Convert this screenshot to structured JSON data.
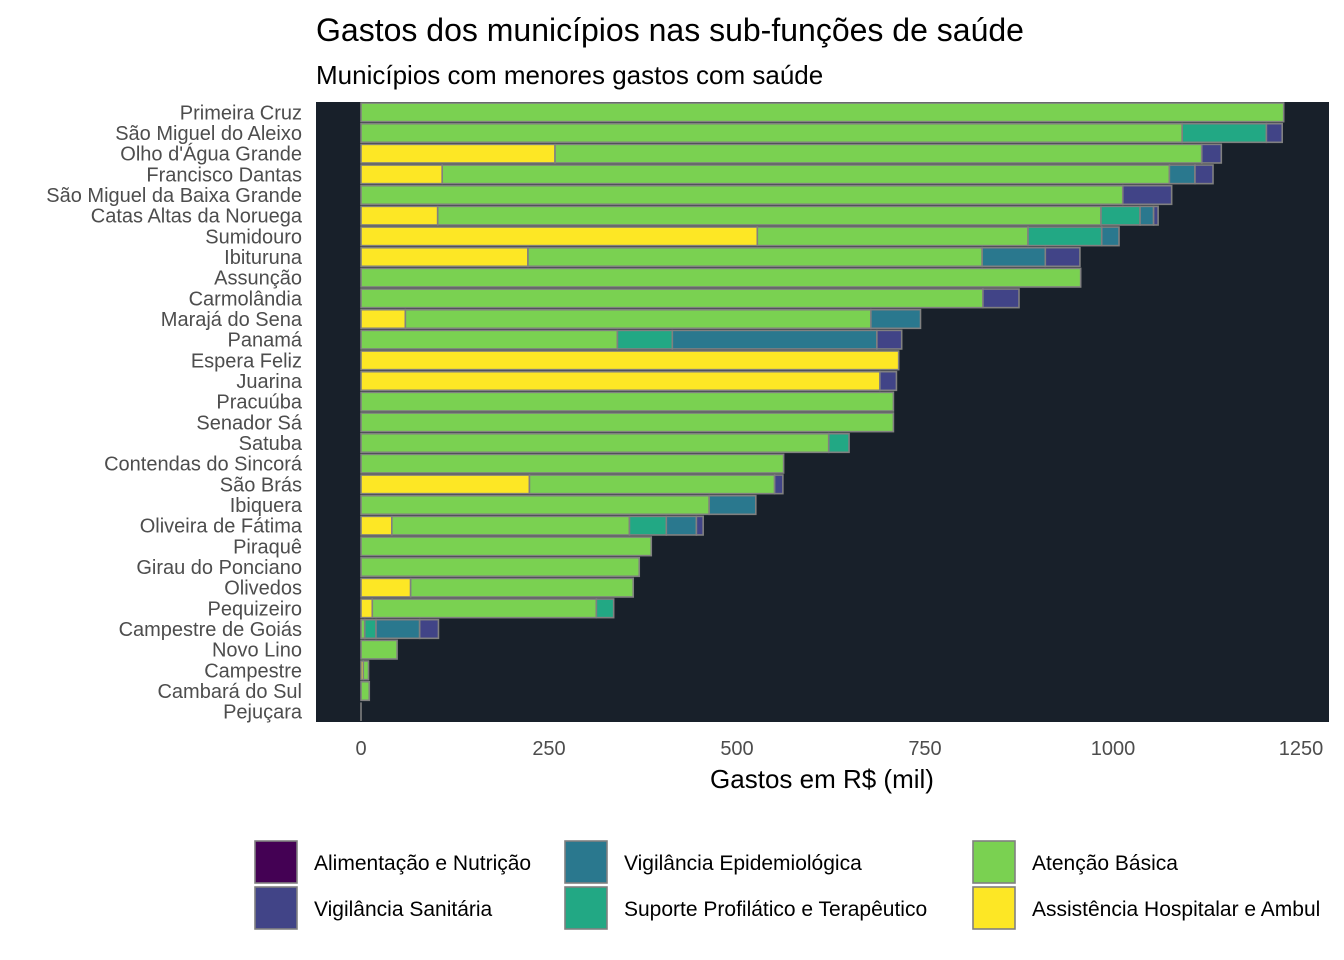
{
  "chart_data": {
    "type": "bar",
    "orientation": "horizontal",
    "stacked": true,
    "title": "Gastos dos municípios nas sub-funções de saúde",
    "subtitle": "Municípios com menores gastos com saúde",
    "xlabel": "Gastos em R$ (mil)",
    "ylabel": "",
    "xlim": [
      -60,
      1290
    ],
    "xticks": [
      0,
      250,
      500,
      750,
      1000,
      1250
    ],
    "panel_background": "#18202a",
    "bar_outline": "#808080",
    "legend_position": "bottom",
    "categories": [
      "Primeira Cruz",
      "São Miguel do Aleixo",
      "Olho d'Água Grande",
      "Francisco Dantas",
      "São Miguel da Baixa Grande",
      "Catas Altas da Noruega",
      "Sumidouro",
      "Ibituruna",
      "Assunção",
      "Carmolândia",
      "Marajá do Sena",
      "Panamá",
      "Espera Feliz",
      "Juarina",
      "Pracuúba",
      "Senador Sá",
      "Satuba",
      "Contendas do Sincorá",
      "São Brás",
      "Ibiquera",
      "Oliveira de Fátima",
      "Piraquê",
      "Girau do Ponciano",
      "Olivedos",
      "Pequizeiro",
      "Campestre de Goiás",
      "Novo Lino",
      "Campestre",
      "Cambará do Sul",
      "Pejuçara"
    ],
    "series": [
      {
        "name": "Alimentação e Nutrição",
        "color": "#440154",
        "values": [
          0,
          0,
          0,
          0,
          0,
          0,
          0,
          0,
          0,
          0,
          0,
          0,
          0,
          0,
          0,
          0,
          0,
          0,
          0,
          0,
          0,
          0,
          0,
          0,
          0,
          0,
          0,
          0,
          0,
          0
        ]
      },
      {
        "name": "Assistência Hospitalar e Ambul",
        "color": "#fde725",
        "values": [
          0,
          0,
          258,
          108,
          0,
          102,
          527,
          222,
          0,
          0,
          59,
          0,
          715,
          690,
          0,
          0,
          0,
          0,
          224,
          0,
          41,
          0,
          0,
          66,
          15,
          0,
          0,
          3,
          0,
          0
        ]
      },
      {
        "name": "Atenção Básica",
        "color": "#7ad151",
        "values": [
          1227,
          1092,
          860,
          967,
          1013,
          882,
          360,
          604,
          957,
          827,
          619,
          341,
          0,
          0,
          708,
          708,
          622,
          562,
          326,
          463,
          316,
          386,
          370,
          296,
          298,
          5,
          48,
          7,
          11,
          0
        ]
      },
      {
        "name": "Suporte Profilático e Terapêutico",
        "color": "#22a884",
        "values": [
          0,
          112,
          0,
          0,
          0,
          52,
          98,
          0,
          0,
          0,
          0,
          73,
          0,
          0,
          0,
          0,
          27,
          0,
          0,
          0,
          49,
          0,
          0,
          0,
          23,
          15,
          0,
          0,
          0,
          0
        ]
      },
      {
        "name": "Vigilância Epidemiológica",
        "color": "#2a788e",
        "values": [
          0,
          0,
          0,
          34,
          0,
          18,
          23,
          84,
          0,
          0,
          66,
          272,
          0,
          0,
          0,
          0,
          0,
          0,
          0,
          62,
          40,
          0,
          0,
          0,
          0,
          58,
          0,
          0,
          0,
          0
        ]
      },
      {
        "name": "Vigilância Sanitária",
        "color": "#414487",
        "values": [
          0,
          21,
          26,
          24,
          65,
          6,
          0,
          46,
          0,
          48,
          0,
          33,
          0,
          22,
          0,
          0,
          0,
          0,
          11,
          0,
          9,
          0,
          0,
          0,
          0,
          25,
          0,
          0,
          0,
          0
        ]
      }
    ],
    "legend_order": [
      "Alimentação e Nutrição",
      "Vigilância Sanitária",
      "Vigilância Epidemiológica",
      "Suporte Profilático e Terapêutico",
      "Atenção Básica",
      "Assistência Hospitalar e Ambul"
    ]
  }
}
